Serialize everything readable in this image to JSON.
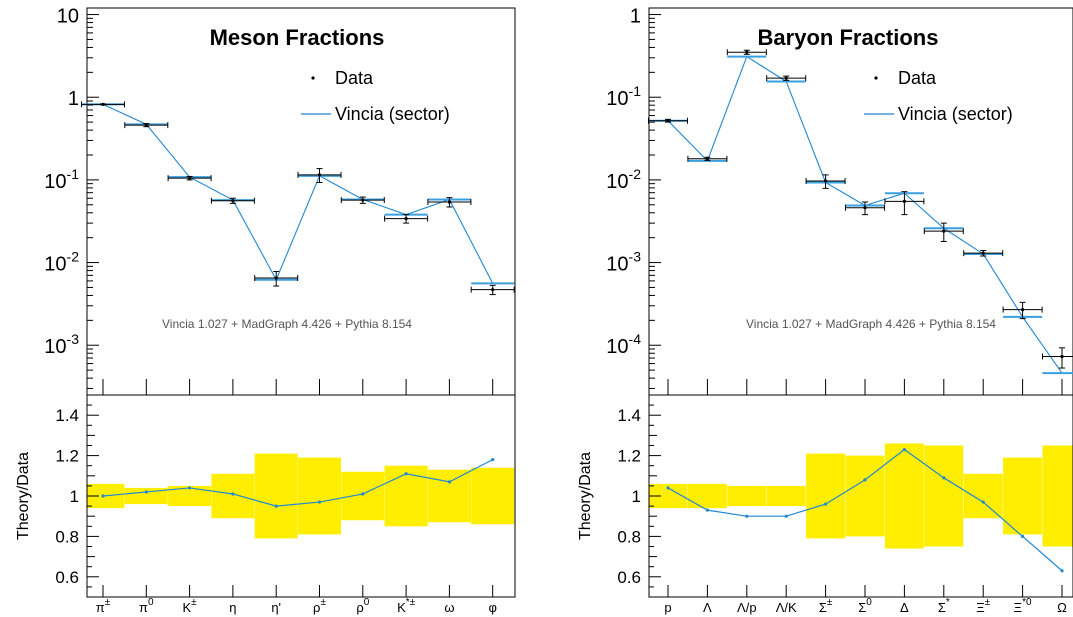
{
  "chart_data": [
    {
      "type": "scatter",
      "title": "Meson Fractions",
      "legend": [
        "Data",
        "Vincia (sector)"
      ],
      "legend_placement": "top-right",
      "annotation": "Vincia 1.027 + MadGraph 4.426 + Pythia 8.154",
      "yscale": "log",
      "ylim": [
        0.00025,
        12
      ],
      "yticks": [
        "10",
        "1",
        "10^-1",
        "10^-2",
        "10^-3"
      ],
      "categories": [
        "π±",
        "π0",
        "K±",
        "η",
        "η'",
        "ρ±",
        "ρ0",
        "K*±",
        "ω",
        "φ"
      ],
      "data_values": [
        0.82,
        0.46,
        0.105,
        0.056,
        0.0065,
        0.115,
        0.057,
        0.034,
        0.054,
        0.0047
      ],
      "data_errors": [
        0.01,
        0.02,
        0.005,
        0.004,
        0.0013,
        0.022,
        0.005,
        0.004,
        0.007,
        0.0006
      ],
      "theory_values": [
        0.82,
        0.47,
        0.108,
        0.057,
        0.0062,
        0.112,
        0.058,
        0.038,
        0.058,
        0.0056
      ],
      "ratio": {
        "ylabel": "Theory/Data",
        "ylim": [
          0.5,
          1.5
        ],
        "yticks": [
          "1.4",
          "1.2",
          "1",
          "0.8",
          "0.6"
        ],
        "values": [
          1.0,
          1.02,
          1.04,
          1.01,
          0.95,
          0.97,
          1.01,
          1.11,
          1.07,
          1.18
        ],
        "band_halfwidths": [
          0.06,
          0.04,
          0.05,
          0.11,
          0.21,
          0.19,
          0.12,
          0.15,
          0.13,
          0.14
        ],
        "band_color": "#ffee00"
      }
    },
    {
      "type": "scatter",
      "title": "Baryon Fractions",
      "legend": [
        "Data",
        "Vincia (sector)"
      ],
      "legend_placement": "top-right",
      "annotation": "Vincia 1.027 + MadGraph 4.426 + Pythia 8.154",
      "yscale": "log",
      "ylim": [
        2.5e-05,
        1.2
      ],
      "yticks": [
        "1",
        "10^-1",
        "10^-2",
        "10^-3",
        "10^-4"
      ],
      "categories": [
        "p",
        "Λ",
        "Λ/p",
        "Λ/K",
        "Σ±",
        "Σ0",
        "Δ",
        "Σ*",
        "Ξ±",
        "Ξ*0",
        "Ω"
      ],
      "data_values": [
        0.052,
        0.018,
        0.35,
        0.17,
        0.0097,
        0.0046,
        0.0055,
        0.0024,
        0.0013,
        0.00027,
        7.3e-05
      ],
      "data_errors": [
        0.002,
        0.0008,
        0.02,
        0.01,
        0.0018,
        0.0008,
        0.0017,
        0.0006,
        0.0001,
        6e-05,
        2e-05
      ],
      "theory_values": [
        0.052,
        0.017,
        0.31,
        0.155,
        0.0093,
        0.0049,
        0.0069,
        0.0026,
        0.00127,
        0.00022,
        4.6e-05
      ],
      "ratio": {
        "ylabel": "Theory/Data",
        "ylim": [
          0.5,
          1.5
        ],
        "yticks": [
          "1.4",
          "1.2",
          "1",
          "0.8",
          "0.6"
        ],
        "values": [
          1.04,
          0.93,
          0.9,
          0.9,
          0.96,
          1.08,
          1.23,
          1.09,
          0.97,
          0.8,
          0.63
        ],
        "band_halfwidths": [
          0.06,
          0.06,
          0.05,
          0.05,
          0.21,
          0.2,
          0.26,
          0.25,
          0.11,
          0.19,
          0.25
        ],
        "band_color": "#ffee00"
      }
    }
  ]
}
